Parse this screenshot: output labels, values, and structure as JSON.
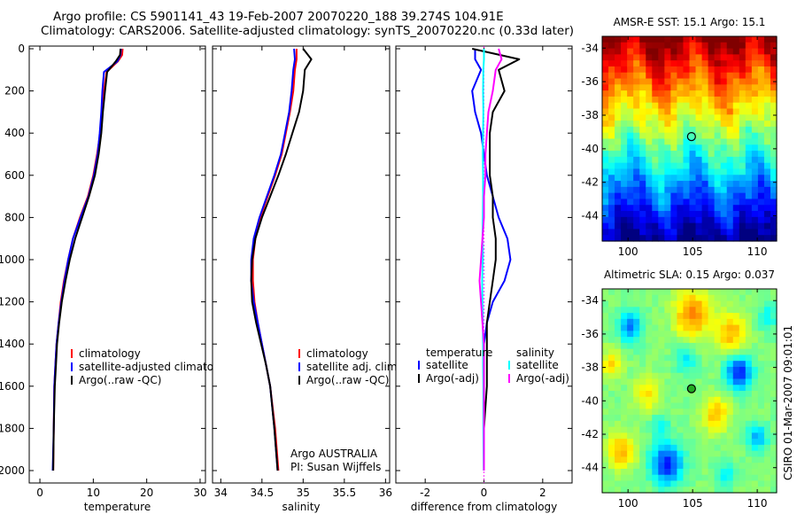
{
  "titles": {
    "line1": "Argo profile: CS 5901141_43 19-Feb-2007 20070220_188 39.274S 104.91E",
    "line2": "Climatology: CARS2006. Satellite-adjusted climatology: synTS_20070220.nc (0.33d later)"
  },
  "sidebar_text": "CSIRO 01-Mar-2007 09:01:01",
  "panels": [
    {
      "id": "temperature",
      "xlabel": "temperature",
      "xticks": [
        "0",
        "10",
        "20",
        "30"
      ],
      "legend_header": [],
      "legend": [
        "climatology",
        "satellite-adjusted climatology",
        "Argo(..raw -QC)"
      ],
      "annotation": []
    },
    {
      "id": "salinity",
      "xlabel": "salinity",
      "xticks": [
        "34",
        "34.5",
        "35",
        "35.5",
        "36"
      ],
      "legend_header": [],
      "legend": [
        "climatology",
        "satellite adj. clim.",
        "Argo(..raw -QC)"
      ],
      "annotation": [
        "Argo AUSTRALIA",
        "PI: Susan Wijffels"
      ]
    },
    {
      "id": "difference",
      "xlabel": "difference from climatology",
      "xticks": [
        "-2",
        "0",
        "2"
      ],
      "legend_header": [
        "temperature",
        "salinity"
      ],
      "legend": [
        "satellite",
        "Argo(-adj)",
        "satellite",
        "Argo(-adj)"
      ],
      "annotation": []
    }
  ],
  "yticks": [
    "0",
    "200",
    "400",
    "600",
    "800",
    "1000",
    "1200",
    "1400",
    "1600",
    "1800",
    "2000"
  ],
  "maps": [
    {
      "id": "sst",
      "title": "AMSR-E SST: 15.1 Argo: 15.1",
      "yticks": [
        "-34",
        "-36",
        "-38",
        "-40",
        "-42",
        "-44"
      ],
      "xticks": [
        "100",
        "105",
        "110"
      ]
    },
    {
      "id": "sla",
      "title": "Altimetric SLA: 0.15 Argo: 0.037",
      "yticks": [
        "-34",
        "-36",
        "-38",
        "-40",
        "-42",
        "-44"
      ],
      "xticks": [
        "100",
        "105",
        "110"
      ]
    }
  ],
  "colors": {
    "climatology": "#ff0000",
    "satellite": "#0000ff",
    "argo": "#000000",
    "salinity_satellite": "#00ffff",
    "salinity_argo": "#ff00ff"
  },
  "chart_data": [
    {
      "type": "line",
      "id": "temperature",
      "xlabel": "temperature",
      "ylabel": "",
      "xlim": [
        -2,
        31
      ],
      "ylim": [
        2000,
        0
      ],
      "series": [
        {
          "name": "climatology",
          "color": "#ff0000",
          "x": [
            15.5,
            15.4,
            14.6,
            12.5,
            12.0,
            11.6,
            11.3,
            10.7,
            10.0,
            9.0,
            7.5,
            6.2,
            5.3,
            4.5,
            3.9,
            3.5,
            3.1,
            2.9,
            2.7,
            2.6,
            2.5
          ],
          "y": [
            0,
            30,
            60,
            110,
            200,
            300,
            400,
            500,
            600,
            700,
            800,
            900,
            1000,
            1100,
            1200,
            1300,
            1400,
            1500,
            1600,
            1800,
            2000
          ]
        },
        {
          "name": "satellite-adjusted climatology",
          "color": "#0000ff",
          "x": [
            15.2,
            15.1,
            14.5,
            12.0,
            11.7,
            11.5,
            11.2,
            10.8,
            10.1,
            9.1,
            7.6,
            6.2,
            5.3,
            4.6,
            4.0,
            3.5,
            3.1,
            2.9,
            2.7,
            2.6,
            2.4
          ],
          "y": [
            0,
            30,
            60,
            110,
            200,
            300,
            400,
            500,
            600,
            700,
            800,
            900,
            1000,
            1100,
            1200,
            1300,
            1400,
            1500,
            1600,
            1800,
            2000
          ]
        },
        {
          "name": "Argo(..raw -QC)",
          "color": "#000000",
          "x": [
            15.1,
            15.0,
            14.2,
            12.6,
            12.2,
            11.8,
            11.5,
            11.0,
            10.3,
            9.2,
            7.9,
            6.6,
            5.6,
            4.8,
            4.1,
            3.6,
            3.2,
            3.0,
            2.8,
            2.6,
            2.5
          ],
          "y": [
            0,
            30,
            60,
            110,
            200,
            300,
            400,
            500,
            600,
            700,
            800,
            900,
            1000,
            1100,
            1200,
            1300,
            1400,
            1500,
            1600,
            1800,
            2000
          ]
        }
      ]
    },
    {
      "type": "line",
      "id": "salinity",
      "xlabel": "salinity",
      "ylabel": "",
      "xlim": [
        33.9,
        36.05
      ],
      "ylim": [
        2000,
        0
      ],
      "series": [
        {
          "name": "climatology",
          "color": "#ff0000",
          "x": [
            34.92,
            34.92,
            34.9,
            34.88,
            34.84,
            34.79,
            34.74,
            34.66,
            34.57,
            34.48,
            34.42,
            34.39,
            34.39,
            34.41,
            34.45,
            34.5,
            34.55,
            34.6,
            34.66,
            34.7
          ],
          "y": [
            0,
            50,
            100,
            200,
            300,
            400,
            500,
            600,
            700,
            800,
            900,
            1000,
            1100,
            1200,
            1300,
            1400,
            1500,
            1600,
            1800,
            2000
          ]
        },
        {
          "name": "satellite adj. clim.",
          "color": "#0000ff",
          "x": [
            34.89,
            34.9,
            34.88,
            34.86,
            34.83,
            34.78,
            34.73,
            34.65,
            34.56,
            34.47,
            34.4,
            34.37,
            34.37,
            34.4,
            34.45,
            34.5,
            34.55,
            34.6,
            34.65,
            34.69
          ],
          "y": [
            0,
            50,
            100,
            200,
            300,
            400,
            500,
            600,
            700,
            800,
            900,
            1000,
            1100,
            1200,
            1300,
            1400,
            1500,
            1600,
            1800,
            2000
          ]
        },
        {
          "name": "Argo(..raw -QC)",
          "color": "#000000",
          "x": [
            35.0,
            35.1,
            35.02,
            35.0,
            34.95,
            34.87,
            34.79,
            34.7,
            34.6,
            34.5,
            34.42,
            34.38,
            34.37,
            34.38,
            34.43,
            34.49,
            34.55,
            34.6,
            34.65,
            34.69
          ],
          "y": [
            0,
            50,
            100,
            200,
            300,
            400,
            500,
            600,
            700,
            800,
            900,
            1000,
            1100,
            1200,
            1300,
            1400,
            1500,
            1600,
            1800,
            2000
          ]
        }
      ]
    },
    {
      "type": "line",
      "id": "difference",
      "xlabel": "difference from climatology",
      "ylabel": "",
      "xlim": [
        -3.0,
        3.0
      ],
      "ylim": [
        2000,
        0
      ],
      "series": [
        {
          "name": "temperature satellite",
          "color": "#0000ff",
          "x": [
            -0.3,
            -0.3,
            -0.1,
            -0.4,
            -0.3,
            -0.1,
            0.0,
            0.1,
            0.3,
            0.5,
            0.8,
            0.9,
            0.7,
            0.3,
            0.1,
            0.0,
            0.0,
            0.0,
            0.0,
            0.0
          ],
          "y": [
            0,
            50,
            100,
            200,
            300,
            400,
            500,
            600,
            700,
            800,
            900,
            1000,
            1100,
            1200,
            1300,
            1400,
            1500,
            1600,
            1800,
            2000
          ]
        },
        {
          "name": "temperature Argo(-adj)",
          "color": "#000000",
          "x": [
            -0.4,
            1.2,
            0.5,
            0.7,
            0.3,
            0.2,
            0.2,
            0.2,
            0.3,
            0.3,
            0.4,
            0.4,
            0.3,
            0.2,
            0.1,
            0.1,
            0.1,
            0.1,
            0.0,
            0.0
          ],
          "y": [
            0,
            50,
            100,
            200,
            300,
            400,
            500,
            600,
            700,
            800,
            900,
            1000,
            1100,
            1200,
            1300,
            1400,
            1500,
            1600,
            1800,
            2000
          ]
        },
        {
          "name": "salinity satellite",
          "color": "#00ffff",
          "x": [
            0.0,
            0.0,
            -0.02,
            -0.03,
            -0.02,
            -0.03,
            -0.04,
            -0.03,
            -0.03,
            -0.04,
            -0.05,
            -0.04,
            -0.06,
            -0.05,
            -0.04,
            -0.03,
            -0.03,
            -0.02,
            -0.02,
            -0.01
          ],
          "y": [
            0,
            50,
            100,
            200,
            300,
            400,
            500,
            600,
            700,
            800,
            900,
            1000,
            1100,
            1200,
            1300,
            1400,
            1500,
            1600,
            1800,
            2000
          ]
        },
        {
          "name": "salinity Argo(-adj)",
          "color": "#ff00ff",
          "x": [
            0.5,
            0.6,
            0.4,
            0.3,
            0.15,
            0.1,
            0.05,
            0.05,
            0.0,
            0.0,
            -0.05,
            -0.1,
            -0.15,
            -0.1,
            -0.05,
            0.0,
            0.0,
            0.0,
            0.0,
            0.0
          ],
          "y": [
            0,
            50,
            100,
            200,
            300,
            400,
            500,
            600,
            700,
            800,
            900,
            1000,
            1100,
            1200,
            1300,
            1400,
            1500,
            1600,
            1800,
            2000
          ]
        }
      ]
    },
    {
      "type": "heatmap",
      "id": "sst",
      "title": "AMSR-E SST: 15.1 Argo: 15.1",
      "xlim": [
        98,
        111.5
      ],
      "ylim": [
        -45.5,
        -33.3
      ],
      "marker": {
        "lon": 104.91,
        "lat": -39.274
      }
    },
    {
      "type": "heatmap",
      "id": "sla",
      "title": "Altimetric SLA: 0.15 Argo: 0.037",
      "xlim": [
        98,
        111.5
      ],
      "ylim": [
        -45.5,
        -33.3
      ],
      "marker": {
        "lon": 104.91,
        "lat": -39.274
      }
    }
  ]
}
